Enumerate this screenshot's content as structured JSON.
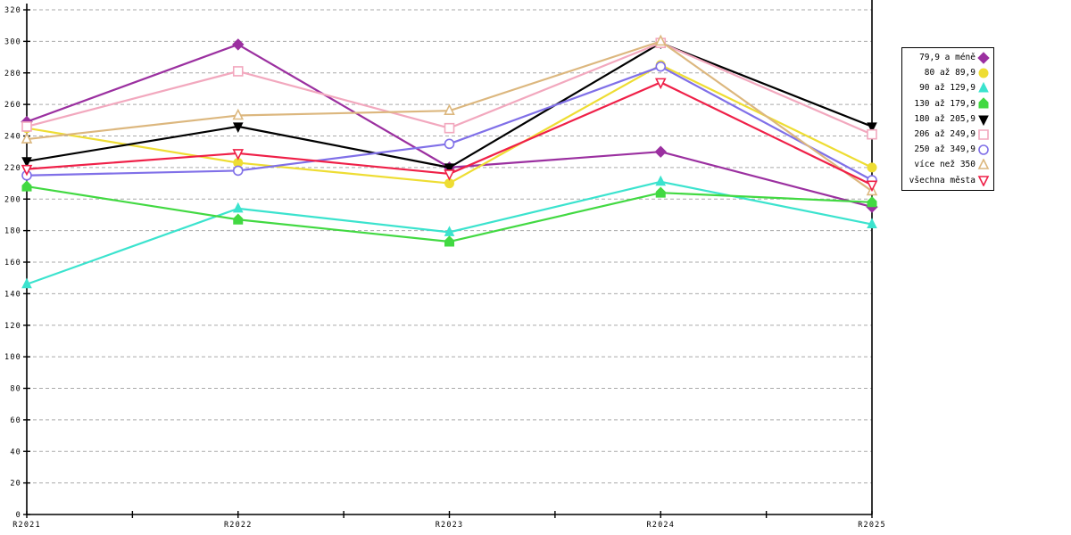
{
  "chart_data": {
    "type": "line",
    "title": "",
    "xlabel": "",
    "ylabel": "",
    "categories": [
      "R2021",
      "R2022",
      "R2023",
      "R2024",
      "R2025"
    ],
    "ylim": [
      0,
      320
    ],
    "ytick_step": 20,
    "y_tick_labels": [
      "0",
      "20",
      "40",
      "60",
      "80",
      "100",
      "120",
      "140",
      "160",
      "180",
      "200",
      "220",
      "240",
      "260",
      "280",
      "300",
      "320"
    ],
    "grid": "horizontal-dashed",
    "grid_color": "#aaaaaa",
    "axis_color": "#000000",
    "legend_position": "right",
    "series": [
      {
        "name": "79,9 a méně",
        "color": "#9b30a0",
        "marker": "diamond-filled",
        "values": [
          249,
          298,
          220,
          230,
          195
        ]
      },
      {
        "name": "80 až 89,9",
        "color": "#eedd33",
        "marker": "circle-filled",
        "values": [
          245,
          223,
          210,
          285,
          220
        ]
      },
      {
        "name": "90 až 129,9",
        "color": "#3be3ce",
        "marker": "triangle-up-filled",
        "values": [
          146,
          194,
          179,
          211,
          184
        ]
      },
      {
        "name": "130 až 179,9",
        "color": "#42d942",
        "marker": "pentagon-filled",
        "values": [
          208,
          187,
          173,
          204,
          198
        ]
      },
      {
        "name": "180 až 205,9",
        "color": "#000000",
        "marker": "triangle-down-filled",
        "values": [
          224,
          246,
          220,
          299,
          246
        ]
      },
      {
        "name": "206 až 249,9",
        "color": "#f2a8be",
        "marker": "square-open",
        "values": [
          246,
          281,
          245,
          299,
          241
        ]
      },
      {
        "name": "250 až 349,9",
        "color": "#8070e8",
        "marker": "circle-open",
        "values": [
          215,
          218,
          235,
          284,
          212
        ]
      },
      {
        "name": "více než 350",
        "color": "#dcb77e",
        "marker": "triangle-up-open",
        "values": [
          238,
          253,
          256,
          300,
          205
        ]
      },
      {
        "name": "všechna města",
        "color": "#ef2048",
        "marker": "triangle-down-open",
        "values": [
          219,
          229,
          216,
          274,
          209
        ]
      }
    ]
  }
}
